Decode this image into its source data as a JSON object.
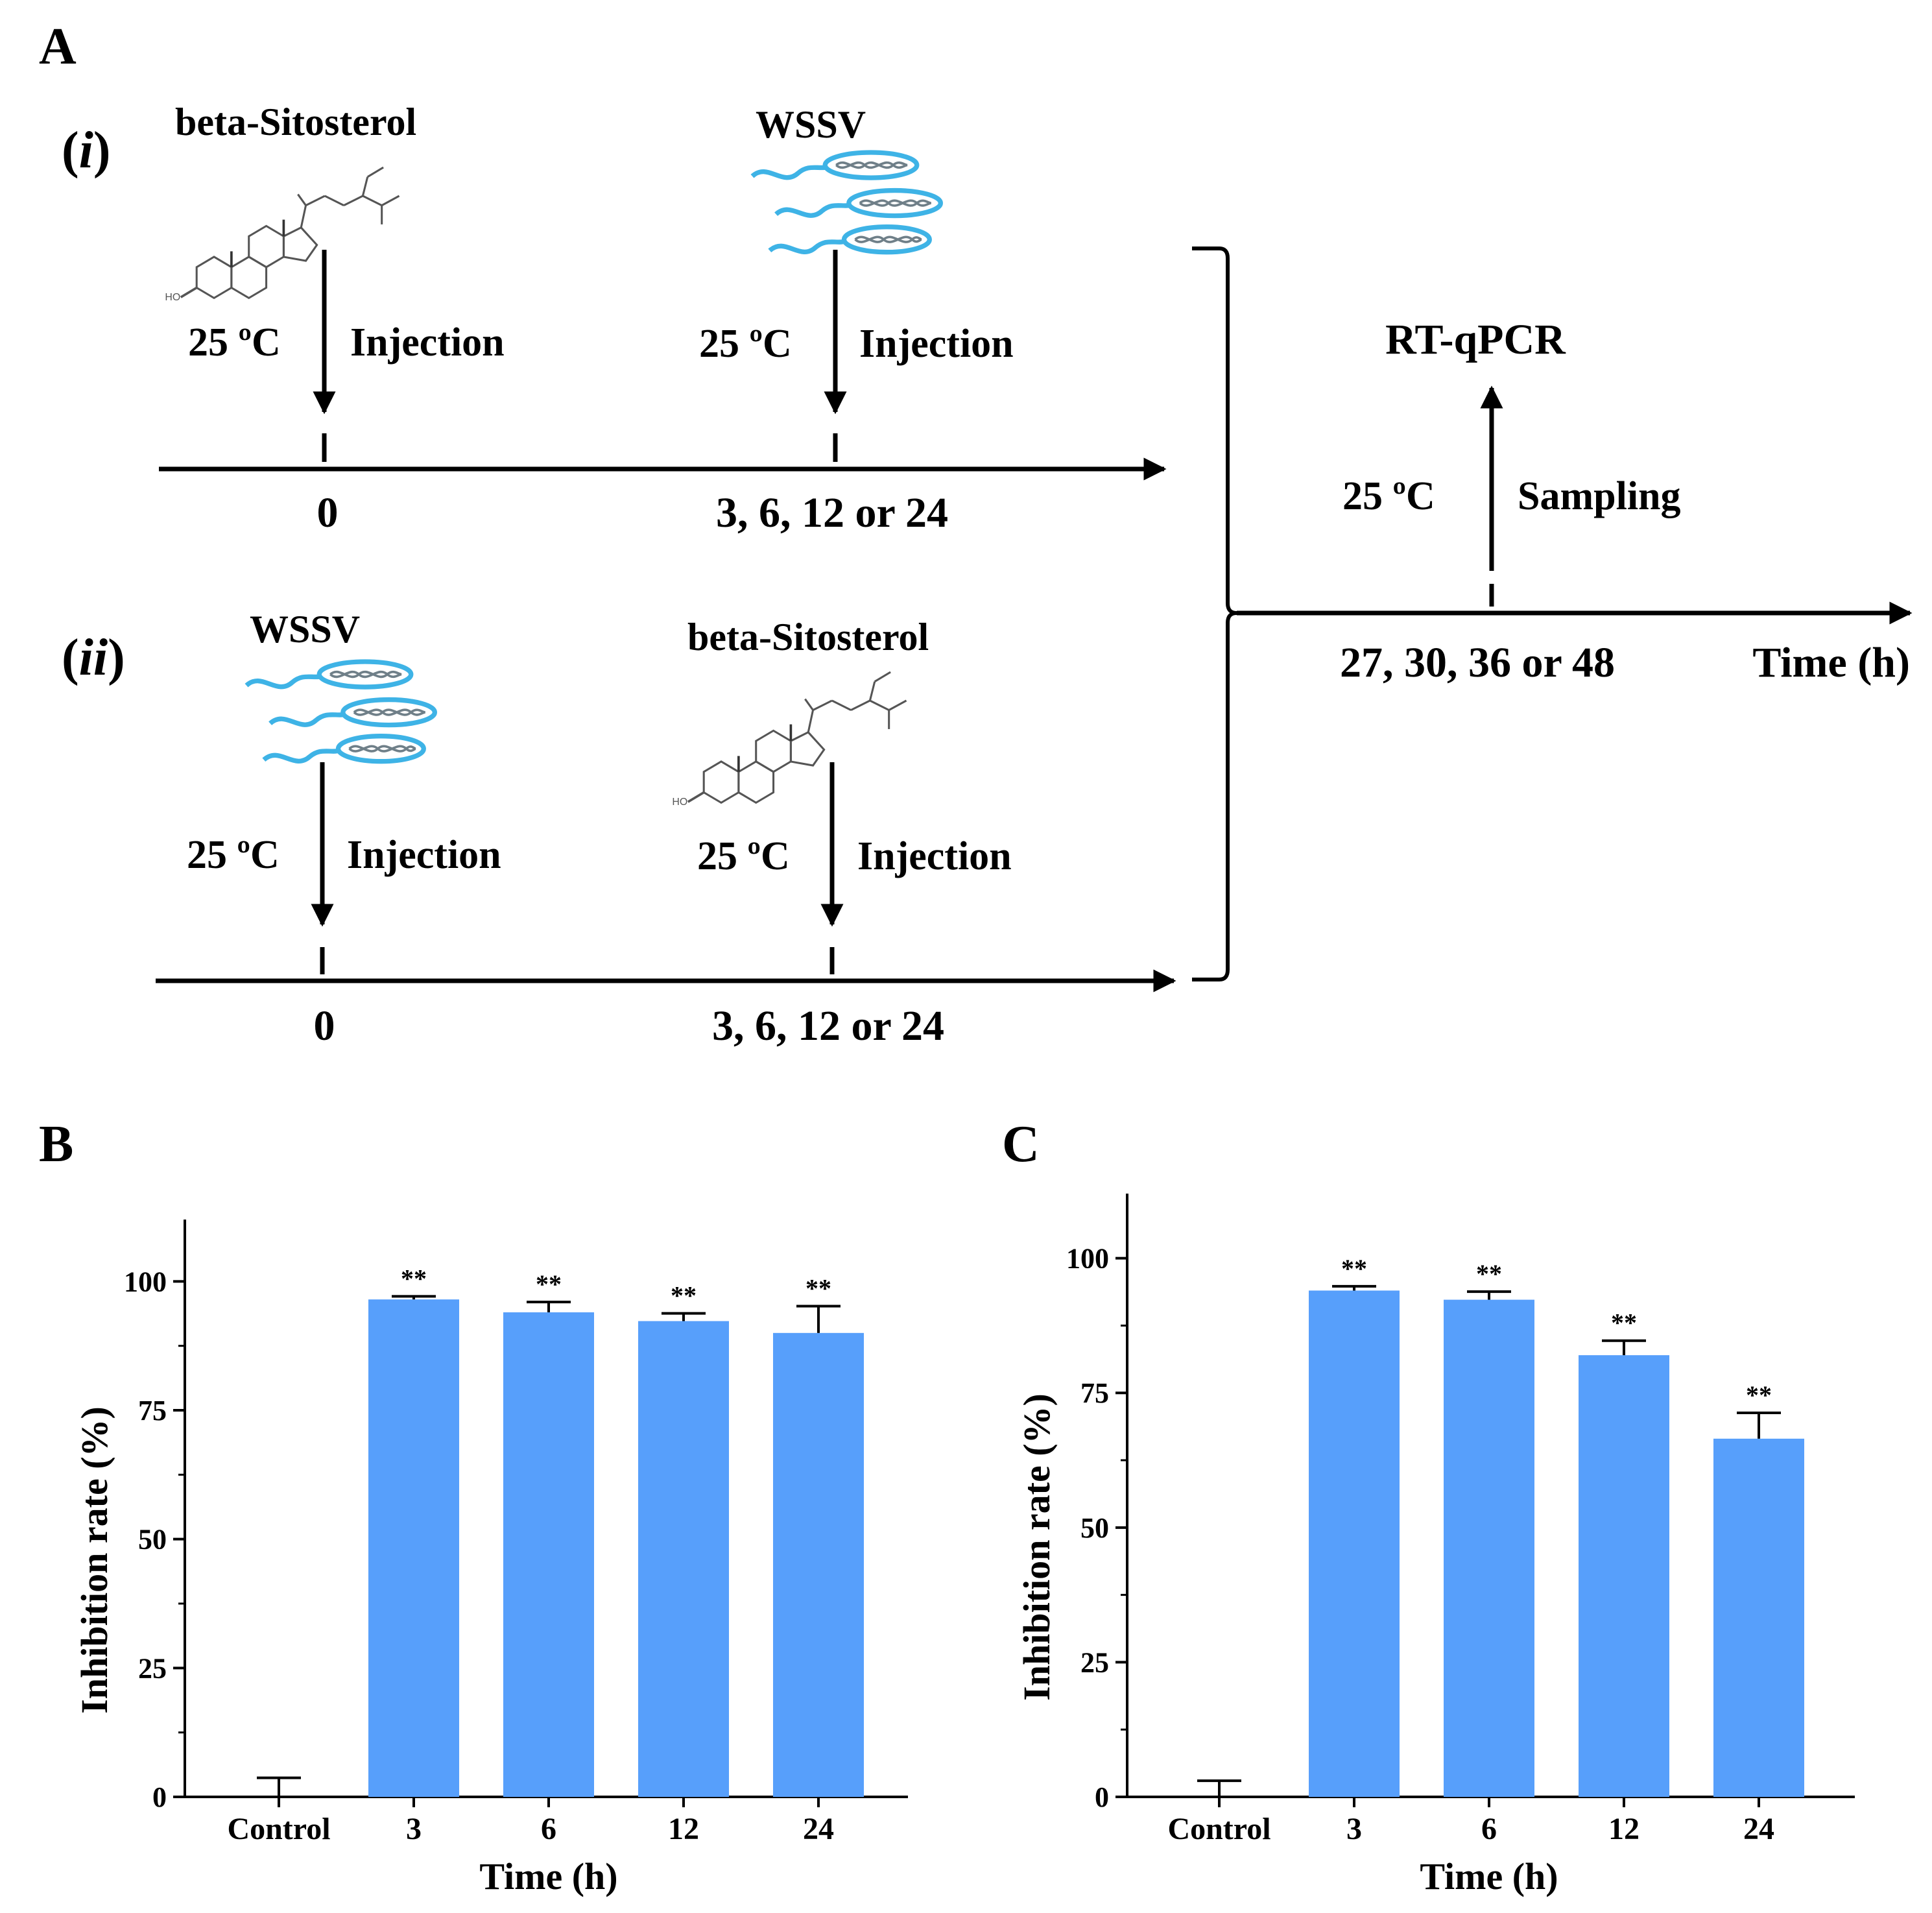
{
  "colors": {
    "bar": "#579ffb",
    "virus": "#3eb3e6",
    "ink": "#000000"
  },
  "panel_a": {
    "label": "A",
    "row_i": {
      "label": "(i)",
      "label_open": "(",
      "label_roman": "i",
      "label_close": ")",
      "compound": "beta-Sitosterol",
      "virus": "WSSV",
      "temp_first": "25 ºC",
      "action_first": "Injection",
      "temp_second": "25 ºC",
      "action_second": "Injection",
      "time_first": "0",
      "time_second": "3, 6, 12 or 24"
    },
    "row_ii": {
      "label": "(ii)",
      "label_open": "(",
      "label_roman": "ii",
      "label_close": ")",
      "virus": "WSSV",
      "compound": "beta-Sitosterol",
      "temp_first": "25 ºC",
      "action_first": "Injection",
      "temp_second": "25 ºC",
      "action_second": "Injection",
      "time_first": "0",
      "time_second": "3, 6, 12 or 24"
    },
    "final": {
      "assay": "RT-qPCR",
      "temp": "25 ºC",
      "action": "Sampling",
      "time": "27, 30, 36 or 48",
      "axis_label": "Time (h)"
    }
  },
  "chart_data": [
    {
      "panel": "B",
      "type": "bar",
      "categories": [
        "Control",
        "3",
        "6",
        "12",
        "24"
      ],
      "values": [
        0,
        96.5,
        94,
        92.3,
        90
      ],
      "errors": [
        3.7,
        0.6,
        2.0,
        1.5,
        5.2
      ],
      "significance": [
        "",
        "**",
        "**",
        "**",
        "**"
      ],
      "xlabel": "Time (h)",
      "ylabel": "Inhibition rate (%)",
      "ylim": [
        0,
        112
      ],
      "yticks": [
        0,
        25,
        50,
        75,
        100
      ],
      "ytick_labels": [
        "0",
        "25",
        "50",
        "75",
        "100"
      ]
    },
    {
      "panel": "C",
      "type": "bar",
      "categories": [
        "Control",
        "3",
        "6",
        "12",
        "24"
      ],
      "values": [
        0,
        94,
        92.3,
        82,
        66.5
      ],
      "errors": [
        3.0,
        0.8,
        1.5,
        2.7,
        4.8
      ],
      "significance": [
        "",
        "**",
        "**",
        "**",
        "**"
      ],
      "xlabel": "Time (h)",
      "ylabel": "Inhibition rate (%)",
      "ylim": [
        0,
        112
      ],
      "yticks": [
        0,
        25,
        50,
        75,
        100
      ],
      "ytick_labels": [
        "0",
        "25",
        "50",
        "75",
        "100"
      ]
    }
  ]
}
